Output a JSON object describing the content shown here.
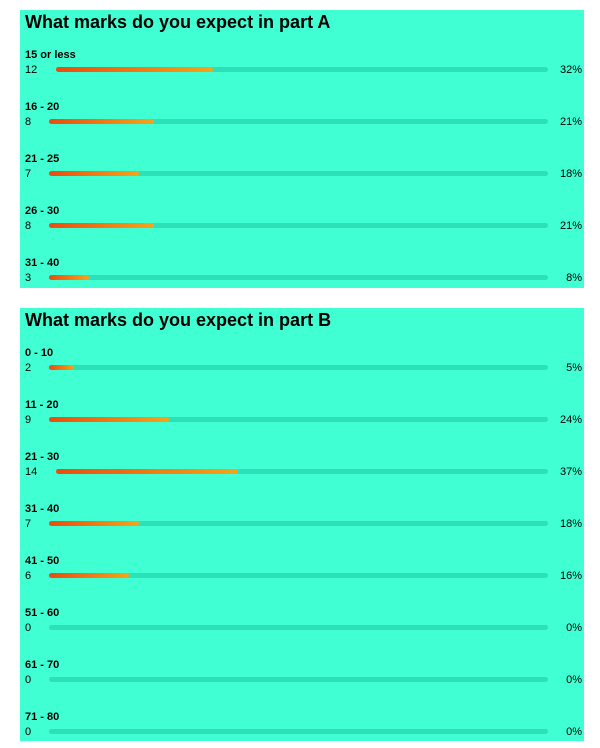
{
  "chart_data": [
    {
      "type": "bar",
      "title": "What marks do you expect in part A",
      "categories": [
        "15 or less",
        "16 - 20",
        "21 - 25",
        "26 - 30",
        "31 - 40"
      ],
      "counts": [
        "12",
        "8",
        "7",
        "8",
        "3"
      ],
      "percent_labels": [
        "32%",
        "21%",
        "18%",
        "21%",
        "8%"
      ],
      "values": [
        32,
        21,
        18,
        21,
        8
      ]
    },
    {
      "type": "bar",
      "title": "What marks do you expect in part B",
      "categories": [
        "0 - 10",
        "11 - 20",
        "21 - 30",
        "31 - 40",
        "41 - 50",
        "51 - 60",
        "61 - 70",
        "71 - 80"
      ],
      "counts": [
        "2",
        "9",
        "14",
        "7",
        "6",
        "0",
        "0",
        "0"
      ],
      "percent_labels": [
        "5%",
        "24%",
        "37%",
        "18%",
        "16%",
        "0%",
        "0%",
        "0%"
      ],
      "values": [
        5,
        24,
        37,
        18,
        16,
        0,
        0,
        0
      ]
    }
  ],
  "colors": {
    "panel_background": "#40ffd2",
    "track": "#2ee0b8",
    "fill_start": "#ee4a0e",
    "fill_end": "#f5a41a"
  }
}
